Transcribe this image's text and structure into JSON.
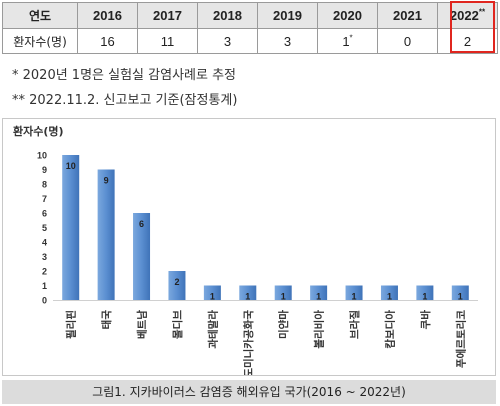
{
  "table": {
    "header_label": "연도",
    "years": [
      "2016",
      "2017",
      "2018",
      "2019",
      "2020",
      "2021",
      "2022"
    ],
    "year_marks": [
      "",
      "",
      "",
      "",
      "",
      "",
      "**"
    ],
    "row_label": "환자수(명)",
    "counts": [
      "16",
      "11",
      "3",
      "3",
      "1",
      "0",
      "2"
    ],
    "count_marks": [
      "",
      "",
      "",
      "",
      "*",
      "",
      ""
    ],
    "highlight_color": "#e0261f"
  },
  "notes": [
    "*  2020년 1명은 실험실 감염사례로 추정",
    "**  2022.11.2. 신고보고 기준(잠정통계)"
  ],
  "chart_data": {
    "type": "bar",
    "ylabel": "환자수(명)",
    "title": "",
    "categories": [
      "필리핀",
      "태국",
      "베트남",
      "몰디브",
      "과테말라",
      "도미니카공화국",
      "미얀마",
      "볼리비아",
      "브라질",
      "캄보디아",
      "쿠바",
      "푸에르토리코"
    ],
    "values": [
      10,
      9,
      6,
      2,
      1,
      1,
      1,
      1,
      1,
      1,
      1,
      1
    ],
    "ylim": [
      0,
      10
    ],
    "yticks": [
      0,
      1,
      2,
      3,
      4,
      5,
      6,
      7,
      8,
      9,
      10
    ],
    "grid": false,
    "bar_color": "#5b8fd1"
  },
  "caption": "그림1. 지카바이러스 감염증 해외유입 국가(2016 ~ 2022년)"
}
